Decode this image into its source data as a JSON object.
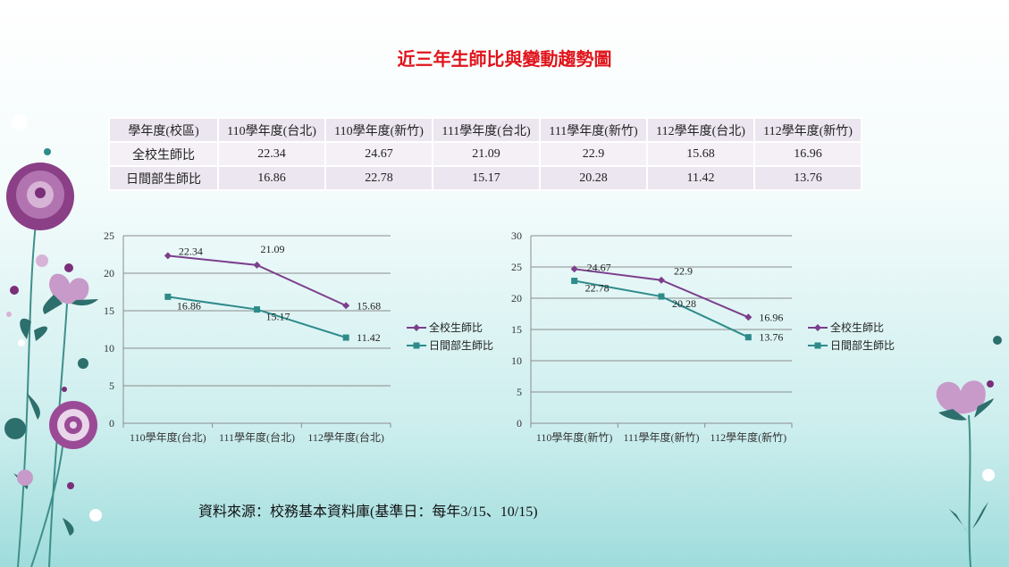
{
  "title": "近三年生師比與變動趨勢圖",
  "table": {
    "header": [
      "學年度(校區)",
      "110學年度(台北)",
      "110學年度(新竹)",
      "111學年度(台北)",
      "111學年度(新竹)",
      "112學年度(台北)",
      "112學年度(新竹)"
    ],
    "rows": [
      [
        "全校生師比",
        "22.34",
        "24.67",
        "21.09",
        "22.9",
        "15.68",
        "16.96"
      ],
      [
        "日間部生師比",
        "16.86",
        "22.78",
        "15.17",
        "20.28",
        "11.42",
        "13.76"
      ]
    ]
  },
  "source_note": "資料來源：校務基本資料庫(基準日：每年3/15、10/15)",
  "colors": {
    "title": "#e0141b",
    "series_all": "#7b3f8c",
    "series_day": "#2e8b8b",
    "table_cell": "#ece6f0",
    "gridline": "#8c8c8c"
  },
  "chart_data": [
    {
      "type": "line",
      "categories": [
        "110學年度(台北)",
        "111學年度(台北)",
        "112學年度(台北)"
      ],
      "series": [
        {
          "name": "全校生師比",
          "values": [
            22.34,
            21.09,
            15.68
          ],
          "labels": [
            "22.34",
            "21.09",
            "15.68"
          ],
          "marker": "diamond"
        },
        {
          "name": "日間部生師比",
          "values": [
            16.86,
            15.17,
            11.42
          ],
          "labels": [
            "16.86",
            "15.17",
            "11.42"
          ],
          "marker": "square"
        }
      ],
      "ylim": [
        0,
        25
      ],
      "yticks": [
        "0",
        "5",
        "10",
        "15",
        "20",
        "25"
      ],
      "grid": true,
      "legend": "right"
    },
    {
      "type": "line",
      "categories": [
        "110學年度(新竹)",
        "111學年度(新竹)",
        "112學年度(新竹)"
      ],
      "series": [
        {
          "name": "全校生師比",
          "values": [
            24.67,
            22.9,
            16.96
          ],
          "labels": [
            "24.67",
            "22.9",
            "16.96"
          ],
          "marker": "diamond"
        },
        {
          "name": "日間部生師比",
          "values": [
            22.78,
            20.28,
            13.76
          ],
          "labels": [
            "22.78",
            "20.28",
            "13.76"
          ],
          "marker": "square"
        }
      ],
      "ylim": [
        0,
        30
      ],
      "yticks": [
        "0",
        "5",
        "10",
        "15",
        "20",
        "25",
        "30"
      ],
      "grid": true,
      "legend": "right"
    }
  ]
}
